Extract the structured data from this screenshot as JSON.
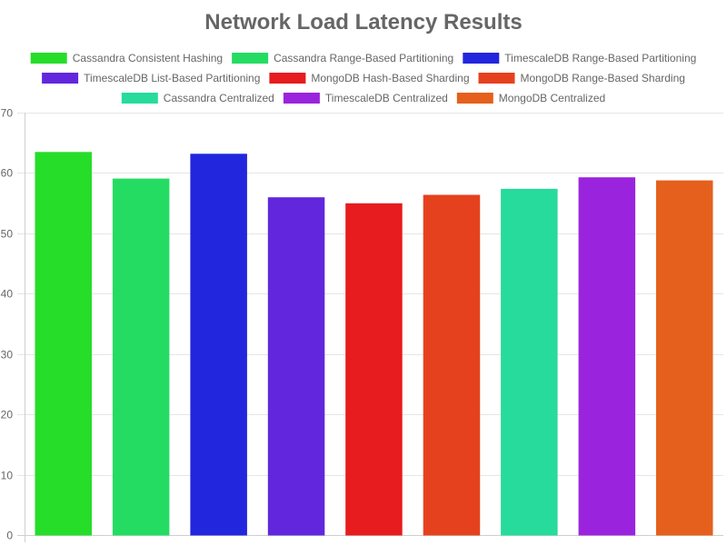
{
  "chart_data": {
    "type": "bar",
    "title": "Network Load Latency Results",
    "xlabel": "",
    "ylabel": "",
    "ylim": [
      0,
      70
    ],
    "yticks": [
      0,
      10,
      20,
      30,
      40,
      50,
      60,
      70
    ],
    "grid": true,
    "legend_position": "top",
    "series": [
      {
        "name": "Cassandra Consistent Hashing",
        "value": 63.4,
        "color": "#26dd2a"
      },
      {
        "name": "Cassandra Range-Based Partitioning",
        "value": 59.0,
        "color": "#25dc63"
      },
      {
        "name": "TimescaleDB Range-Based Partitioning",
        "value": 63.1,
        "color": "#2226dd"
      },
      {
        "name": "TimescaleDB List-Based Partitioning",
        "value": 55.9,
        "color": "#6227dd"
      },
      {
        "name": "MongoDB Hash-Based Sharding",
        "value": 54.9,
        "color": "#e61c1e"
      },
      {
        "name": "MongoDB Range-Based Sharding",
        "value": 56.3,
        "color": "#e6411f"
      },
      {
        "name": "Cassandra Centralized",
        "value": 57.3,
        "color": "#26db9c"
      },
      {
        "name": "TimescaleDB Centralized",
        "value": 59.2,
        "color": "#9a24dd"
      },
      {
        "name": "MongoDB Centralized",
        "value": 58.7,
        "color": "#e5601d"
      }
    ]
  }
}
